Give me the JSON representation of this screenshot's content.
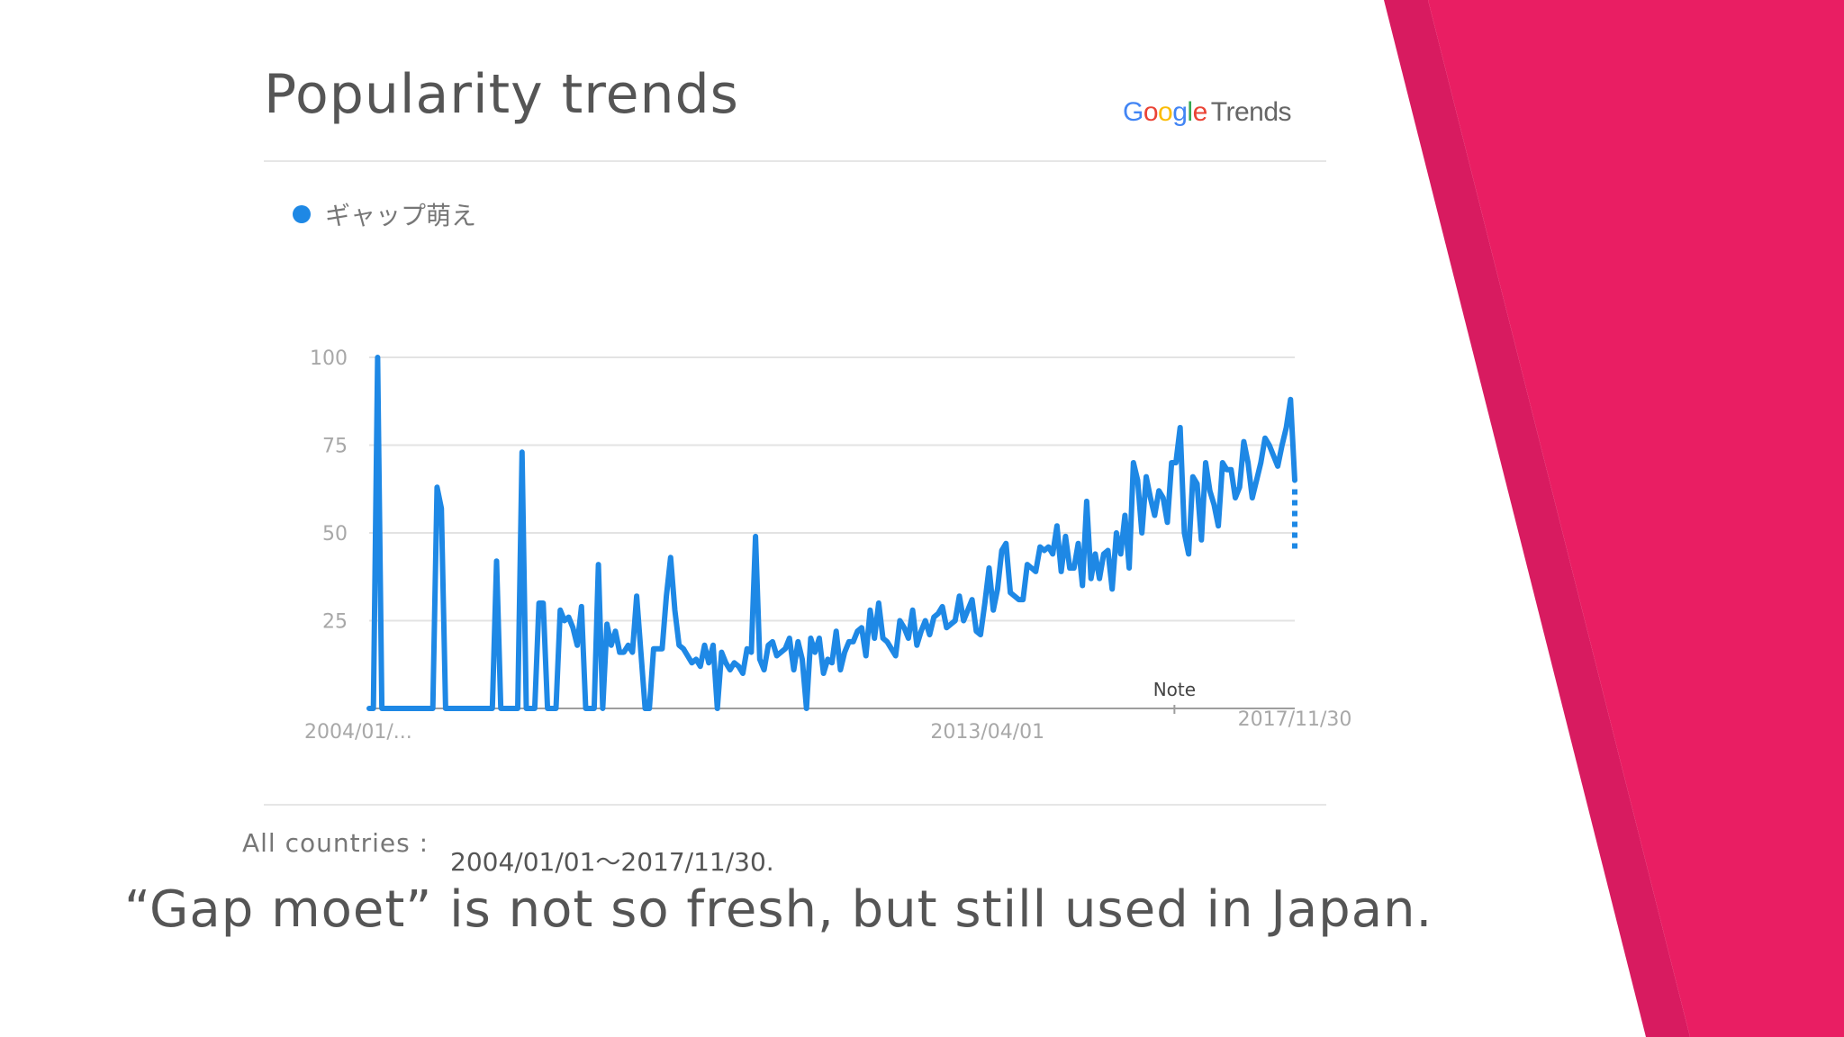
{
  "slide": {
    "title": "Popularity trends",
    "logo": {
      "google": [
        "G",
        "o",
        "o",
        "g",
        "l",
        "e"
      ],
      "trends": "Trends"
    },
    "subtitle": "“Gap moet” is not so fresh, but still used in Japan.",
    "footer_label": "All countries :",
    "footer_range": "2004/01/01〜2017/11/30.",
    "accent_colors": [
      "#e91e63",
      "#d81b60"
    ]
  },
  "chart_data": {
    "type": "line",
    "title": "",
    "series": [
      {
        "name": "ギャップ萌え",
        "color": "#1e88e5",
        "values": [
          0,
          0,
          100,
          0,
          0,
          0,
          0,
          0,
          0,
          0,
          0,
          0,
          0,
          0,
          0,
          0,
          63,
          57,
          0,
          0,
          0,
          0,
          0,
          0,
          0,
          0,
          0,
          0,
          0,
          0,
          42,
          0,
          0,
          0,
          0,
          0,
          73,
          0,
          0,
          0,
          30,
          30,
          0,
          0,
          0,
          28,
          25,
          26,
          23,
          18,
          29,
          0,
          0,
          0,
          41,
          0,
          24,
          18,
          22,
          16,
          16,
          18,
          16,
          32,
          16,
          0,
          0,
          17,
          17,
          17,
          32,
          43,
          28,
          18,
          17,
          15,
          13,
          14,
          12,
          18,
          13,
          18,
          0,
          16,
          13,
          11,
          13,
          12,
          10,
          17,
          16,
          49,
          14,
          11,
          18,
          19,
          15,
          16,
          17,
          20,
          11,
          19,
          14,
          0,
          20,
          16,
          20,
          10,
          14,
          13,
          22,
          11,
          16,
          19,
          19,
          22,
          23,
          15,
          28,
          20,
          30,
          20,
          19,
          17,
          15,
          25,
          23,
          20,
          28,
          18,
          22,
          25,
          21,
          26,
          27,
          29,
          23,
          24,
          25,
          32,
          25,
          28,
          31,
          22,
          21,
          30,
          40,
          28,
          34,
          45,
          47,
          33,
          32,
          31,
          31,
          41,
          40,
          39,
          46,
          45,
          46,
          44,
          52,
          39,
          49,
          40,
          40,
          47,
          35,
          59,
          37,
          44,
          37,
          44,
          45,
          34,
          50,
          44,
          55,
          40,
          70,
          65,
          50,
          66,
          60,
          55,
          62,
          60,
          53,
          70,
          70,
          80,
          50,
          44,
          66,
          64,
          48,
          70,
          62,
          58,
          52,
          70,
          68,
          68,
          60,
          63,
          76,
          70,
          60,
          65,
          70,
          77,
          75,
          72,
          69,
          75,
          80,
          88,
          65
        ]
      }
    ],
    "x_labels": [
      "2004/01/...",
      "2013/04/01",
      "2017/11/30"
    ],
    "x_label_fractions": [
      0,
      0.67,
      1.0
    ],
    "annotation": {
      "label": "Note",
      "fraction": 0.87
    },
    "y_ticks": [
      100,
      75,
      50,
      25
    ],
    "ylim": [
      0,
      100
    ],
    "xlabel": "",
    "ylabel": "",
    "grid": true,
    "legend": "top-left"
  }
}
